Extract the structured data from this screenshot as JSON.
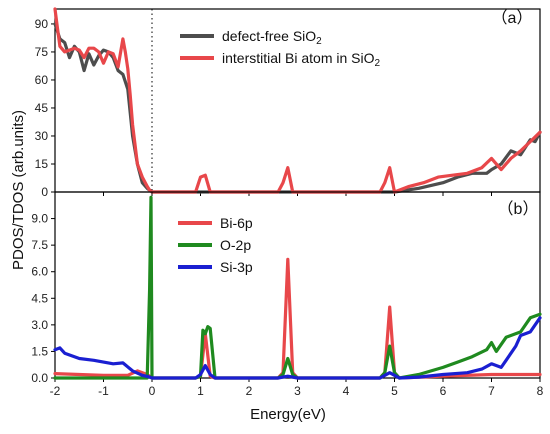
{
  "colors": {
    "defect_free": "#4d4d4d",
    "interstitial": "#e8474a",
    "bi6p": "#e8474a",
    "o2p": "#1f8a1f",
    "si3p": "#1a1fd1"
  },
  "axis_labels": {
    "x": "Energy(eV)",
    "y": "PDOS/TDOS  (arb.units)"
  },
  "chart_data": [
    {
      "type": "line",
      "panel_label": "（a）",
      "xlim": [
        -2,
        8
      ],
      "ylim": [
        0,
        98
      ],
      "x_ticks": [
        "-2",
        "-1",
        "0",
        "1",
        "2",
        "3",
        "4",
        "5",
        "6",
        "7",
        "8"
      ],
      "x_tick_values": [
        -2,
        -1,
        0,
        1,
        2,
        3,
        4,
        5,
        6,
        7,
        8
      ],
      "y_ticks": [
        "0",
        "15",
        "30",
        "45",
        "60",
        "75",
        "90"
      ],
      "y_tick_values": [
        0,
        15,
        30,
        45,
        60,
        75,
        90
      ],
      "fermi_level": 0,
      "legend": [
        {
          "base": "defect-free SiO",
          "sub": "2",
          "color_key": "defect_free"
        },
        {
          "base": "interstitial Bi atom in SiO",
          "sub": "2",
          "color_key": "interstitial"
        }
      ],
      "series": [
        {
          "name": "defect-free SiO2",
          "color_key": "defect_free",
          "x": [
            -2,
            -1.9,
            -1.8,
            -1.7,
            -1.6,
            -1.5,
            -1.4,
            -1.3,
            -1.2,
            -1.1,
            -1.0,
            -0.9,
            -0.8,
            -0.7,
            -0.6,
            -0.5,
            -0.4,
            -0.3,
            -0.2,
            -0.1,
            0,
            0.5,
            1,
            2,
            3,
            4,
            5,
            5.5,
            6,
            6.3,
            6.6,
            6.9,
            7.0,
            7.2,
            7.4,
            7.6,
            7.8,
            7.9,
            8
          ],
          "y": [
            90,
            82,
            80,
            72,
            78,
            75,
            65,
            74,
            68,
            73,
            76,
            75,
            72,
            65,
            63,
            55,
            30,
            15,
            5,
            2,
            0,
            0,
            0,
            0,
            0,
            0,
            0,
            2,
            5,
            8,
            10,
            10,
            12,
            15,
            22,
            20,
            28,
            27,
            32
          ]
        },
        {
          "name": "interstitial Bi atom in SiO2",
          "color_key": "interstitial",
          "x": [
            -2,
            -1.95,
            -1.9,
            -1.8,
            -1.7,
            -1.6,
            -1.5,
            -1.4,
            -1.3,
            -1.2,
            -1.1,
            -1.0,
            -0.9,
            -0.8,
            -0.7,
            -0.6,
            -0.55,
            -0.5,
            -0.45,
            -0.4,
            -0.3,
            -0.2,
            -0.1,
            -0.05,
            0,
            0.9,
            1.0,
            1.1,
            1.2,
            1.3,
            2.6,
            2.7,
            2.8,
            2.9,
            4.7,
            4.8,
            4.9,
            5.0,
            5.3,
            5.6,
            5.9,
            6.2,
            6.5,
            6.8,
            7.0,
            7.2,
            7.4,
            7.6,
            7.8,
            8
          ],
          "y": [
            98,
            88,
            78,
            75,
            76,
            77,
            76,
            72,
            77,
            77,
            75,
            69,
            75,
            74,
            67,
            82,
            75,
            66,
            52,
            36,
            15,
            8,
            3,
            1,
            0,
            0,
            8,
            9,
            0,
            0,
            0,
            5,
            13,
            0,
            0,
            5,
            13,
            0,
            3,
            5,
            8,
            9,
            10,
            13,
            18,
            12,
            18,
            22,
            27,
            32
          ]
        }
      ]
    },
    {
      "type": "line",
      "panel_label": "（b）",
      "xlim": [
        -2,
        8
      ],
      "ylim": [
        0,
        10.5
      ],
      "x_ticks": [
        "-2",
        "-1",
        "0",
        "1",
        "2",
        "3",
        "4",
        "5",
        "6",
        "7",
        "8"
      ],
      "x_tick_values": [
        -2,
        -1,
        0,
        1,
        2,
        3,
        4,
        5,
        6,
        7,
        8
      ],
      "y_ticks": [
        "0.0",
        "1.5",
        "3.0",
        "4.5",
        "6.0",
        "7.5",
        "9.0"
      ],
      "y_tick_values": [
        0,
        1.5,
        3.0,
        4.5,
        6.0,
        7.5,
        9.0
      ],
      "fermi_level": 0,
      "legend": [
        {
          "base": "Bi-6p",
          "sub": "",
          "color_key": "bi6p"
        },
        {
          "base": "O-2p",
          "sub": "",
          "color_key": "o2p"
        },
        {
          "base": "Si-3p",
          "sub": "",
          "color_key": "si3p"
        }
      ],
      "series": [
        {
          "name": "Bi-6p",
          "color_key": "bi6p",
          "x": [
            -2,
            -1.5,
            -1.0,
            -0.5,
            -0.3,
            -0.1,
            0,
            0.9,
            1.0,
            1.1,
            1.2,
            1.3,
            2.6,
            2.7,
            2.8,
            2.9,
            3.0,
            4.7,
            4.8,
            4.9,
            5.0,
            5.1,
            6.0,
            7.0,
            8
          ],
          "y": [
            0.25,
            0.2,
            0.15,
            0.15,
            0.4,
            0.2,
            0,
            0,
            0.1,
            2.5,
            0.1,
            0,
            0,
            0.3,
            6.7,
            0.3,
            0,
            0,
            0.3,
            4.0,
            0.3,
            0,
            0.1,
            0.2,
            0.2
          ]
        },
        {
          "name": "O-2p",
          "color_key": "o2p",
          "x": [
            -2,
            -1.0,
            -0.3,
            -0.1,
            -0.05,
            -0.02,
            0,
            0.9,
            1.0,
            1.05,
            1.1,
            1.15,
            1.2,
            1.3,
            2.6,
            2.7,
            2.8,
            2.9,
            3.0,
            4.7,
            4.8,
            4.9,
            5.0,
            5.1,
            5.5,
            6.0,
            6.3,
            6.6,
            6.9,
            7.0,
            7.1,
            7.3,
            7.6,
            7.8,
            8
          ],
          "y": [
            0,
            0,
            0,
            0,
            5.0,
            10.2,
            0,
            0,
            0.1,
            2.7,
            2.5,
            2.9,
            2.8,
            0,
            0,
            0.2,
            1.1,
            0.2,
            0,
            0,
            0.3,
            1.8,
            0.3,
            0,
            0.2,
            0.6,
            0.9,
            1.2,
            1.6,
            2.0,
            1.5,
            2.3,
            2.6,
            3.4,
            3.6
          ]
        },
        {
          "name": "Si-3p",
          "color_key": "si3p",
          "x": [
            -2,
            -1.9,
            -1.8,
            -1.5,
            -1.2,
            -1.0,
            -0.8,
            -0.6,
            -0.4,
            -0.2,
            -0.05,
            0,
            0.9,
            1.0,
            1.1,
            1.2,
            1.3,
            2.6,
            2.8,
            3.0,
            4.7,
            4.9,
            5.1,
            5.5,
            6.0,
            6.5,
            6.8,
            7.0,
            7.2,
            7.3,
            7.5,
            7.6,
            7.8,
            8
          ],
          "y": [
            1.6,
            1.7,
            1.4,
            1.1,
            1.0,
            0.9,
            0.8,
            0.85,
            0.4,
            0.15,
            0.05,
            0,
            0,
            0.2,
            0.7,
            0.2,
            0,
            0,
            0.1,
            0,
            0,
            0.3,
            0,
            0.05,
            0.2,
            0.3,
            0.5,
            0.8,
            0.6,
            1.0,
            1.8,
            2.4,
            2.6,
            3.4
          ]
        }
      ]
    }
  ]
}
